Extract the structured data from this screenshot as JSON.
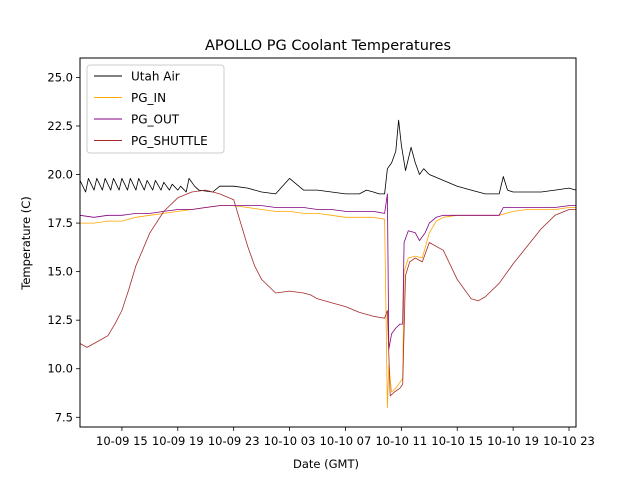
{
  "chart_data": {
    "type": "line",
    "title": "APOLLO PG Coolant Temperatures",
    "xlabel": "Date (GMT)",
    "ylabel": "Temperature (C)",
    "x_unit": "hours since 2018-10-09 12:00 GMT",
    "xlim": [
      0,
      35.5
    ],
    "ylim": [
      7.0,
      26.0
    ],
    "grid": false,
    "legend_position": "top-left",
    "x_ticks": [
      {
        "x": 3,
        "label": "10-09 15"
      },
      {
        "x": 7,
        "label": "10-09 19"
      },
      {
        "x": 11,
        "label": "10-09 23"
      },
      {
        "x": 15,
        "label": "10-10 03"
      },
      {
        "x": 19,
        "label": "10-10 07"
      },
      {
        "x": 23,
        "label": "10-10 11"
      },
      {
        "x": 27,
        "label": "10-10 15"
      },
      {
        "x": 31,
        "label": "10-10 19"
      },
      {
        "x": 35,
        "label": "10-10 23"
      }
    ],
    "y_ticks": [
      {
        "y": 7.5,
        "label": "7.5"
      },
      {
        "y": 10.0,
        "label": "10.0"
      },
      {
        "y": 12.5,
        "label": "12.5"
      },
      {
        "y": 15.0,
        "label": "15.0"
      },
      {
        "y": 17.5,
        "label": "17.5"
      },
      {
        "y": 20.0,
        "label": "20.0"
      },
      {
        "y": 22.5,
        "label": "22.5"
      },
      {
        "y": 25.0,
        "label": "25.0"
      }
    ],
    "series": [
      {
        "name": "Utah Air",
        "color": "#000000",
        "x": [
          0,
          0.4,
          0.6,
          1.0,
          1.2,
          1.6,
          1.8,
          2.2,
          2.4,
          2.8,
          3.0,
          3.4,
          3.6,
          4.0,
          4.2,
          4.6,
          4.8,
          5.2,
          5.4,
          5.8,
          6.0,
          6.4,
          6.6,
          7.0,
          7.2,
          7.6,
          7.8,
          8.2,
          8.5,
          9.5,
          10,
          11,
          12,
          13,
          14,
          15,
          16,
          17,
          18,
          19,
          20,
          20.5,
          21,
          21.4,
          21.8,
          22.0,
          22.3,
          22.6,
          22.8,
          23.0,
          23.3,
          23.5,
          23.7,
          24.0,
          24.3,
          24.6,
          25,
          26,
          27,
          28,
          29,
          30,
          30.3,
          30.6,
          31,
          32,
          33,
          34,
          35,
          35.5
        ],
        "y": [
          19.7,
          19.1,
          19.8,
          19.2,
          19.8,
          19.2,
          19.8,
          19.2,
          19.8,
          19.2,
          19.8,
          19.2,
          19.8,
          19.2,
          19.8,
          19.2,
          19.7,
          19.2,
          19.7,
          19.2,
          19.6,
          19.2,
          19.5,
          19.2,
          19.4,
          19.1,
          19.8,
          19.4,
          19.2,
          19.1,
          19.4,
          19.4,
          19.3,
          19.1,
          19.0,
          19.8,
          19.2,
          19.2,
          19.1,
          19.0,
          19.0,
          19.2,
          19.1,
          19.0,
          19.0,
          20.3,
          20.6,
          21.2,
          22.8,
          21.5,
          20.2,
          20.8,
          21.4,
          20.6,
          20.0,
          20.3,
          20.0,
          19.7,
          19.4,
          19.2,
          19.0,
          19.0,
          19.9,
          19.2,
          19.1,
          19.1,
          19.1,
          19.2,
          19.3,
          19.2
        ]
      },
      {
        "name": "PG_IN",
        "color": "#ffa500",
        "x": [
          0,
          1,
          2,
          3,
          4,
          5,
          6,
          7,
          8,
          9,
          10,
          11,
          12,
          13,
          14,
          15,
          16,
          17,
          18,
          19,
          20,
          21,
          21.8,
          22.0,
          22.1,
          22.3,
          22.6,
          22.9,
          23.1,
          23.2,
          23.5,
          24.0,
          24.5,
          25,
          25.5,
          26,
          27,
          28,
          29,
          30,
          31,
          32,
          33,
          34,
          35,
          35.5
        ],
        "y": [
          17.5,
          17.5,
          17.6,
          17.6,
          17.8,
          17.9,
          18.0,
          18.1,
          18.2,
          18.3,
          18.4,
          18.4,
          18.3,
          18.2,
          18.1,
          18.1,
          18.0,
          18.0,
          17.9,
          17.8,
          17.8,
          17.8,
          17.7,
          8.0,
          10.2,
          8.8,
          9.0,
          9.3,
          9.5,
          15.0,
          15.7,
          15.8,
          15.7,
          17.0,
          17.6,
          17.8,
          17.9,
          17.9,
          17.9,
          17.9,
          18.1,
          18.2,
          18.2,
          18.2,
          18.3,
          18.3
        ]
      },
      {
        "name": "PG_OUT",
        "color": "#800080",
        "x": [
          0,
          1,
          2,
          3,
          4,
          5,
          6,
          7,
          8,
          9,
          10,
          11,
          12,
          13,
          14,
          15,
          16,
          17,
          18,
          19,
          20,
          21,
          21.8,
          22.0,
          22.1,
          22.3,
          22.6,
          22.9,
          23.1,
          23.2,
          23.5,
          24.0,
          24.3,
          24.7,
          25,
          25.5,
          26,
          27,
          28,
          29,
          30,
          30.3,
          31,
          32,
          33,
          34,
          35,
          35.5
        ],
        "y": [
          17.9,
          17.8,
          17.9,
          17.9,
          18.0,
          18.0,
          18.1,
          18.2,
          18.2,
          18.3,
          18.4,
          18.4,
          18.4,
          18.4,
          18.3,
          18.3,
          18.3,
          18.2,
          18.2,
          18.1,
          18.1,
          18.1,
          18.0,
          19.0,
          11.0,
          11.8,
          12.1,
          12.3,
          12.3,
          16.5,
          17.1,
          17.0,
          16.6,
          17.0,
          17.5,
          17.8,
          17.9,
          17.9,
          17.9,
          17.9,
          17.9,
          18.3,
          18.3,
          18.3,
          18.3,
          18.3,
          18.4,
          18.4
        ]
      },
      {
        "name": "PG_SHUTTLE",
        "color": "#a52a2a",
        "x": [
          0,
          0.5,
          1,
          1.5,
          2,
          2.5,
          3,
          3.5,
          4,
          5,
          6,
          7,
          8,
          9,
          10,
          11,
          11.5,
          12,
          12.5,
          13,
          14,
          15,
          16,
          16.5,
          17,
          18,
          19,
          20,
          21,
          21.8,
          22.0,
          22.2,
          22.5,
          22.9,
          23.1,
          23.3,
          23.6,
          24.0,
          24.5,
          25,
          26,
          27,
          28,
          28.5,
          29,
          30,
          31,
          32,
          33,
          34,
          35,
          35.5
        ],
        "y": [
          11.3,
          11.1,
          11.3,
          11.5,
          11.7,
          12.3,
          13.0,
          14.1,
          15.3,
          17.0,
          18.1,
          18.8,
          19.1,
          19.2,
          19.0,
          18.7,
          17.5,
          16.3,
          15.3,
          14.6,
          13.9,
          14.0,
          13.9,
          13.8,
          13.6,
          13.4,
          13.2,
          12.9,
          12.7,
          12.6,
          13.0,
          8.6,
          8.8,
          9.0,
          9.2,
          14.8,
          15.5,
          15.7,
          15.5,
          16.5,
          16.1,
          14.6,
          13.6,
          13.5,
          13.7,
          14.4,
          15.4,
          16.3,
          17.2,
          17.9,
          18.2,
          18.2
        ]
      }
    ]
  }
}
